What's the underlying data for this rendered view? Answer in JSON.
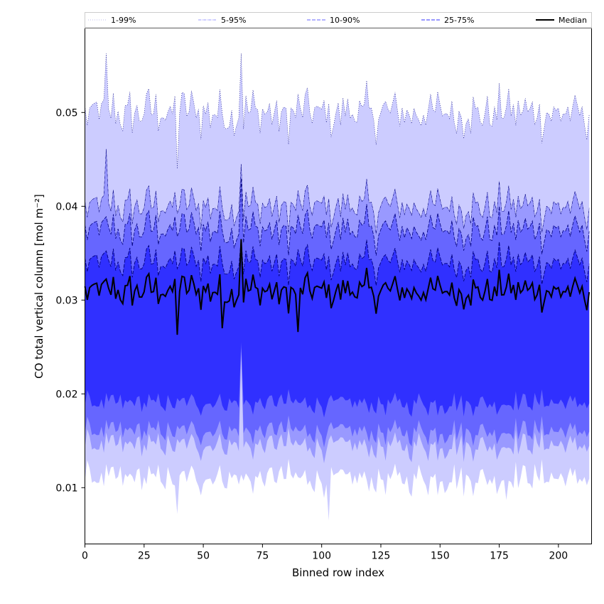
{
  "chart_data": {
    "type": "area",
    "title": "",
    "xlabel": "Binned row index",
    "ylabel": "CO total vertical column [mol m⁻²]",
    "xlim": [
      0,
      214
    ],
    "ylim": [
      0.004,
      0.059
    ],
    "x_ticks": [
      0,
      25,
      50,
      75,
      100,
      125,
      150,
      175,
      200
    ],
    "y_ticks": [
      0.01,
      0.02,
      0.03,
      0.04,
      0.05
    ],
    "y_tick_labels": [
      "0.01",
      "0.02",
      "0.03",
      "0.04",
      "0.05"
    ],
    "legend_position": "top (spanning full width)",
    "grid": false,
    "n_points": 214,
    "bands": [
      {
        "name": "1-99%",
        "color": "#ccccff",
        "line_style": "dotted",
        "upper_typical": 0.05,
        "lower_typical": 0.011
      },
      {
        "name": "5-95%",
        "color": "#9999ff",
        "line_style": "dashdot",
        "upper_typical": 0.04,
        "lower_typical": 0.0145
      },
      {
        "name": "10-90%",
        "color": "#6666ff",
        "line_style": "dashed",
        "upper_typical": 0.0375,
        "lower_typical": 0.016
      },
      {
        "name": "25-75%",
        "color": "#3030ff",
        "line_style": "dashed",
        "upper_typical": 0.034,
        "lower_typical": 0.019
      }
    ],
    "median": {
      "name": "Median",
      "color": "#000000",
      "typical": 0.031,
      "min": 0.0263,
      "max": 0.0365
    }
  }
}
